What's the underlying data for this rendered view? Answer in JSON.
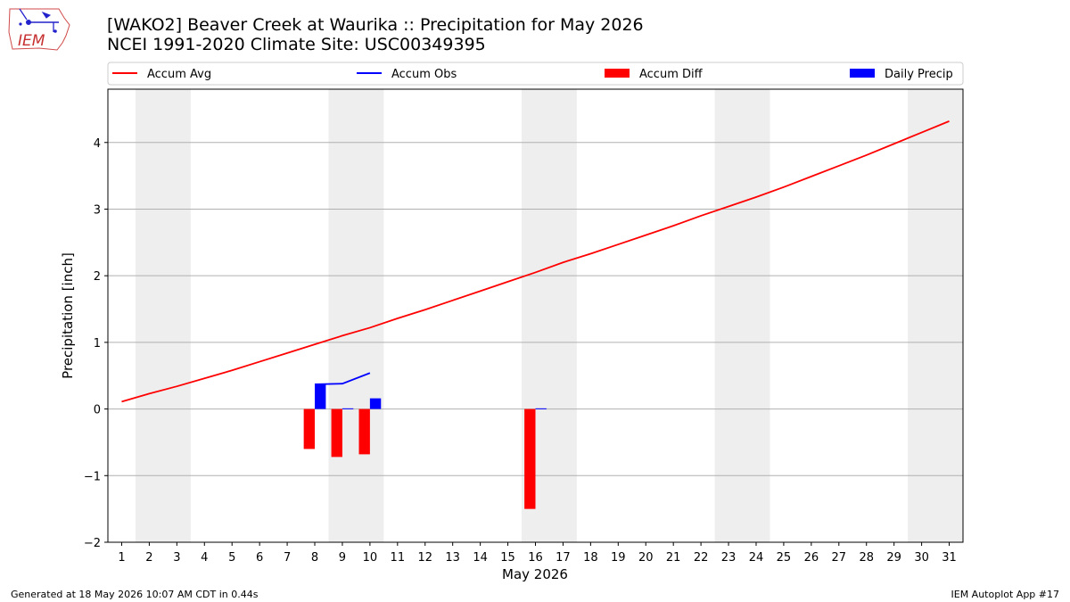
{
  "logo": {
    "text": "IEM"
  },
  "title_line1": "[WAKO2] Beaver Creek at Waurika :: Precipitation for May 2026",
  "title_line2": "NCEI 1991-2020 Climate Site: USC00349395",
  "footer_left": "Generated at 18 May 2026 10:07 AM CDT in 0.44s",
  "footer_right": "IEM Autoplot App #17",
  "colors": {
    "accum_avg": "#ff0000",
    "accum_obs": "#0000ff",
    "accum_diff": "#ff0000",
    "daily_precip": "#0000ff",
    "weekend_band": "#eeeeee",
    "grid": "#b0b0b0"
  },
  "chart_data": {
    "type": "bar",
    "xlabel": "May 2026",
    "ylabel": "Precipitation [inch]",
    "ylim": [
      -2,
      4.8
    ],
    "yticks": [
      -2,
      -1,
      0,
      1,
      2,
      3,
      4
    ],
    "ytick_labels": [
      "−2",
      "−1",
      "0",
      "1",
      "2",
      "3",
      "4"
    ],
    "x": [
      1,
      2,
      3,
      4,
      5,
      6,
      7,
      8,
      9,
      10,
      11,
      12,
      13,
      14,
      15,
      16,
      17,
      18,
      19,
      20,
      21,
      22,
      23,
      24,
      25,
      26,
      27,
      28,
      29,
      30,
      31
    ],
    "grid": "horizontal",
    "legend_position": "top",
    "weekend_days": [
      2,
      3,
      9,
      10,
      16,
      17,
      23,
      24,
      30,
      31
    ],
    "series": [
      {
        "name": "Accum Avg",
        "kind": "line",
        "x": [
          1,
          2,
          3,
          4,
          5,
          6,
          7,
          8,
          9,
          10,
          11,
          12,
          13,
          14,
          15,
          16,
          17,
          18,
          19,
          20,
          21,
          22,
          23,
          24,
          25,
          26,
          27,
          28,
          29,
          30,
          31
        ],
        "values": [
          0.11,
          0.23,
          0.34,
          0.46,
          0.58,
          0.71,
          0.84,
          0.97,
          1.1,
          1.22,
          1.36,
          1.49,
          1.63,
          1.77,
          1.91,
          2.05,
          2.2,
          2.33,
          2.47,
          2.61,
          2.75,
          2.9,
          3.04,
          3.18,
          3.33,
          3.49,
          3.65,
          3.81,
          3.98,
          4.15,
          4.32
        ]
      },
      {
        "name": "Accum Obs",
        "kind": "line",
        "x": [
          8,
          9,
          10
        ],
        "values": [
          0.37,
          0.38,
          0.54
        ]
      },
      {
        "name": "Accum Diff",
        "kind": "bar",
        "x": [
          8,
          9,
          10,
          16
        ],
        "values": [
          -0.6,
          -0.72,
          -0.68,
          -1.5
        ]
      },
      {
        "name": "Daily Precip",
        "kind": "bar",
        "x": [
          8,
          9,
          10,
          16
        ],
        "values": [
          0.37,
          0.01,
          0.16,
          0.01
        ]
      }
    ]
  }
}
